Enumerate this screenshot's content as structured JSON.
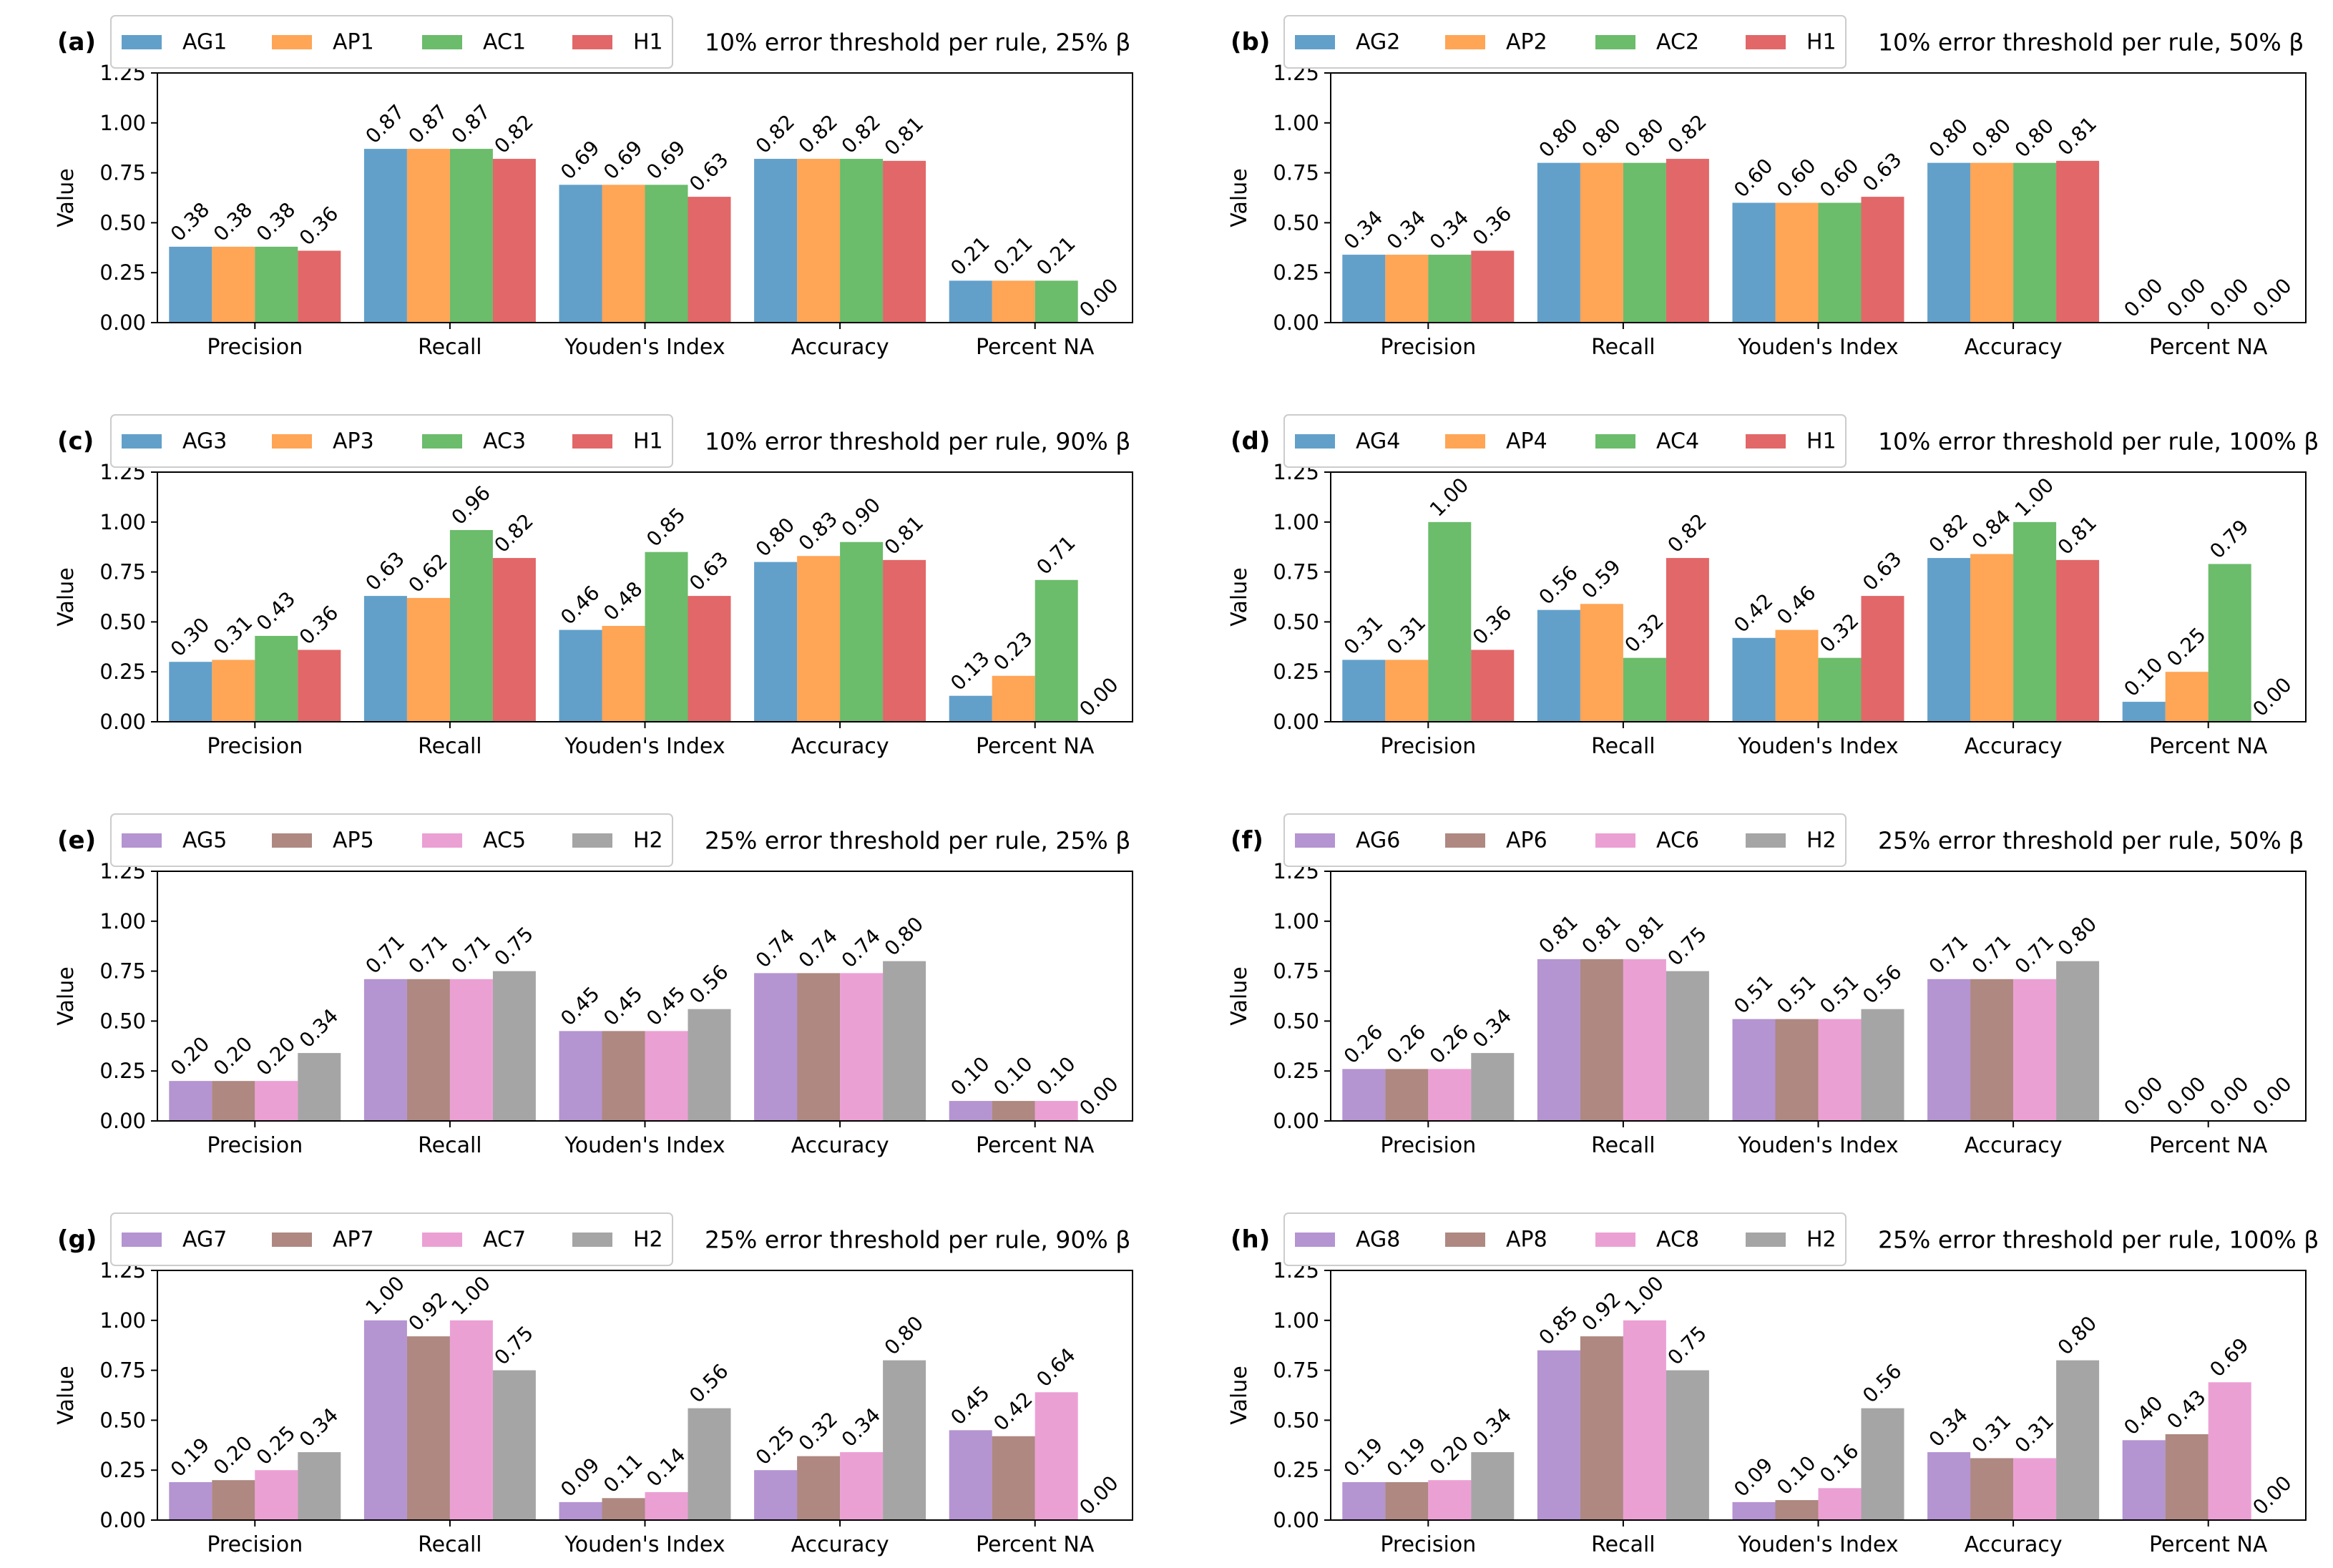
{
  "figure": {
    "ylabel": "Value",
    "yticks": [
      0,
      0.25,
      0.5,
      0.75,
      1.0,
      1.25
    ],
    "ytick_labels": [
      "0.00",
      "0.25",
      "0.50",
      "0.75",
      "1.00",
      "1.25"
    ]
  },
  "chart_data": [
    {
      "type": "bar",
      "panel": "(a)",
      "title": "10% error threshold per rule, 25% β",
      "categories": [
        "Precision",
        "Recall",
        "Youden's Index",
        "Accuracy",
        "Percent NA"
      ],
      "ylabel": "Value",
      "ylim": [
        0,
        1.25
      ],
      "series": [
        {
          "name": "AG1",
          "color": "#1f77b4",
          "values": [
            0.38,
            0.87,
            0.69,
            0.82,
            0.21
          ],
          "labels": [
            "0.38",
            "0.87",
            "0.69",
            "0.82",
            "0.21"
          ]
        },
        {
          "name": "AP1",
          "color": "#ff7f0e",
          "values": [
            0.38,
            0.87,
            0.69,
            0.82,
            0.21
          ],
          "labels": [
            "0.38",
            "0.87",
            "0.69",
            "0.82",
            "0.21"
          ]
        },
        {
          "name": "AC1",
          "color": "#2ca02c",
          "values": [
            0.38,
            0.87,
            0.69,
            0.82,
            0.21
          ],
          "labels": [
            "0.38",
            "0.87",
            "0.69",
            "0.82",
            "0.21"
          ]
        },
        {
          "name": "H1",
          "color": "#d62728",
          "values": [
            0.36,
            0.82,
            0.63,
            0.81,
            0.0
          ],
          "labels": [
            "0.36",
            "0.82",
            "0.63",
            "0.81",
            "0.00"
          ]
        }
      ]
    },
    {
      "type": "bar",
      "panel": "(b)",
      "title": "10% error threshold per rule, 50% β",
      "categories": [
        "Precision",
        "Recall",
        "Youden's Index",
        "Accuracy",
        "Percent NA"
      ],
      "ylabel": "Value",
      "ylim": [
        0,
        1.25
      ],
      "series": [
        {
          "name": "AG2",
          "color": "#1f77b4",
          "values": [
            0.34,
            0.8,
            0.6,
            0.8,
            0.0
          ],
          "labels": [
            "0.34",
            "0.80",
            "0.60",
            "0.80",
            "0.00"
          ]
        },
        {
          "name": "AP2",
          "color": "#ff7f0e",
          "values": [
            0.34,
            0.8,
            0.6,
            0.8,
            0.0
          ],
          "labels": [
            "0.34",
            "0.80",
            "0.60",
            "0.80",
            "0.00"
          ]
        },
        {
          "name": "AC2",
          "color": "#2ca02c",
          "values": [
            0.34,
            0.8,
            0.6,
            0.8,
            0.0
          ],
          "labels": [
            "0.34",
            "0.80",
            "0.60",
            "0.80",
            "0.00"
          ]
        },
        {
          "name": "H1",
          "color": "#d62728",
          "values": [
            0.36,
            0.82,
            0.63,
            0.81,
            0.0
          ],
          "labels": [
            "0.36",
            "0.82",
            "0.63",
            "0.81",
            "0.00"
          ]
        }
      ]
    },
    {
      "type": "bar",
      "panel": "(c)",
      "title": "10% error threshold per rule, 90% β",
      "categories": [
        "Precision",
        "Recall",
        "Youden's Index",
        "Accuracy",
        "Percent NA"
      ],
      "ylabel": "Value",
      "ylim": [
        0,
        1.25
      ],
      "series": [
        {
          "name": "AG3",
          "color": "#1f77b4",
          "values": [
            0.3,
            0.63,
            0.46,
            0.8,
            0.13
          ],
          "labels": [
            "0.30",
            "0.63",
            "0.46",
            "0.80",
            "0.13"
          ]
        },
        {
          "name": "AP3",
          "color": "#ff7f0e",
          "values": [
            0.31,
            0.62,
            0.48,
            0.83,
            0.23
          ],
          "labels": [
            "0.31",
            "0.62",
            "0.48",
            "0.83",
            "0.23"
          ]
        },
        {
          "name": "AC3",
          "color": "#2ca02c",
          "values": [
            0.43,
            0.96,
            0.85,
            0.9,
            0.71
          ],
          "labels": [
            "0.43",
            "0.96",
            "0.85",
            "0.90",
            "0.71"
          ]
        },
        {
          "name": "H1",
          "color": "#d62728",
          "values": [
            0.36,
            0.82,
            0.63,
            0.81,
            0.0
          ],
          "labels": [
            "0.36",
            "0.82",
            "0.63",
            "0.81",
            "0.00"
          ]
        }
      ]
    },
    {
      "type": "bar",
      "panel": "(d)",
      "title": "10% error threshold per rule, 100% β",
      "categories": [
        "Precision",
        "Recall",
        "Youden's Index",
        "Accuracy",
        "Percent NA"
      ],
      "ylabel": "Value",
      "ylim": [
        0,
        1.25
      ],
      "series": [
        {
          "name": "AG4",
          "color": "#1f77b4",
          "values": [
            0.31,
            0.56,
            0.42,
            0.82,
            0.1
          ],
          "labels": [
            "0.31",
            "0.56",
            "0.42",
            "0.82",
            "0.10"
          ]
        },
        {
          "name": "AP4",
          "color": "#ff7f0e",
          "values": [
            0.31,
            0.59,
            0.46,
            0.84,
            0.25
          ],
          "labels": [
            "0.31",
            "0.59",
            "0.46",
            "0.84",
            "0.25"
          ]
        },
        {
          "name": "AC4",
          "color": "#2ca02c",
          "values": [
            1.0,
            0.32,
            0.32,
            1.0,
            0.79
          ],
          "labels": [
            "1.00",
            "0.32",
            "0.32",
            "1.00",
            "0.79"
          ]
        },
        {
          "name": "H1",
          "color": "#d62728",
          "values": [
            0.36,
            0.82,
            0.63,
            0.81,
            0.0
          ],
          "labels": [
            "0.36",
            "0.82",
            "0.63",
            "0.81",
            "0.00"
          ]
        }
      ]
    },
    {
      "type": "bar",
      "panel": "(e)",
      "title": "25% error threshold per rule, 25% β",
      "categories": [
        "Precision",
        "Recall",
        "Youden's Index",
        "Accuracy",
        "Percent NA"
      ],
      "ylabel": "Value",
      "ylim": [
        0,
        1.25
      ],
      "series": [
        {
          "name": "AG5",
          "color": "#9467bd",
          "values": [
            0.2,
            0.71,
            0.45,
            0.74,
            0.1
          ],
          "labels": [
            "0.20",
            "0.71",
            "0.45",
            "0.74",
            "0.10"
          ]
        },
        {
          "name": "AP5",
          "color": "#8c564b",
          "values": [
            0.2,
            0.71,
            0.45,
            0.74,
            0.1
          ],
          "labels": [
            "0.20",
            "0.71",
            "0.45",
            "0.74",
            "0.10"
          ]
        },
        {
          "name": "AC5",
          "color": "#e377c2",
          "values": [
            0.2,
            0.71,
            0.45,
            0.74,
            0.1
          ],
          "labels": [
            "0.20",
            "0.71",
            "0.45",
            "0.74",
            "0.10"
          ]
        },
        {
          "name": "H2",
          "color": "#7f7f7f",
          "values": [
            0.34,
            0.75,
            0.56,
            0.8,
            0.0
          ],
          "labels": [
            "0.34",
            "0.75",
            "0.56",
            "0.80",
            "0.00"
          ]
        }
      ]
    },
    {
      "type": "bar",
      "panel": "(f)",
      "title": "25% error threshold per rule, 50% β",
      "categories": [
        "Precision",
        "Recall",
        "Youden's Index",
        "Accuracy",
        "Percent NA"
      ],
      "ylabel": "Value",
      "ylim": [
        0,
        1.25
      ],
      "series": [
        {
          "name": "AG6",
          "color": "#9467bd",
          "values": [
            0.26,
            0.81,
            0.51,
            0.71,
            0.0
          ],
          "labels": [
            "0.26",
            "0.81",
            "0.51",
            "0.71",
            "0.00"
          ]
        },
        {
          "name": "AP6",
          "color": "#8c564b",
          "values": [
            0.26,
            0.81,
            0.51,
            0.71,
            0.0
          ],
          "labels": [
            "0.26",
            "0.81",
            "0.51",
            "0.71",
            "0.00"
          ]
        },
        {
          "name": "AC6",
          "color": "#e377c2",
          "values": [
            0.26,
            0.81,
            0.51,
            0.71,
            0.0
          ],
          "labels": [
            "0.26",
            "0.81",
            "0.51",
            "0.71",
            "0.00"
          ]
        },
        {
          "name": "H2",
          "color": "#7f7f7f",
          "values": [
            0.34,
            0.75,
            0.56,
            0.8,
            0.0
          ],
          "labels": [
            "0.34",
            "0.75",
            "0.56",
            "0.80",
            "0.00"
          ]
        }
      ]
    },
    {
      "type": "bar",
      "panel": "(g)",
      "title": "25% error threshold per rule, 90% β",
      "categories": [
        "Precision",
        "Recall",
        "Youden's Index",
        "Accuracy",
        "Percent NA"
      ],
      "ylabel": "Value",
      "ylim": [
        0,
        1.25
      ],
      "series": [
        {
          "name": "AG7",
          "color": "#9467bd",
          "values": [
            0.19,
            1.0,
            0.09,
            0.25,
            0.45
          ],
          "labels": [
            "0.19",
            "1.00",
            "0.09",
            "0.25",
            "0.45"
          ]
        },
        {
          "name": "AP7",
          "color": "#8c564b",
          "values": [
            0.2,
            0.92,
            0.11,
            0.32,
            0.42
          ],
          "labels": [
            "0.20",
            "0.92",
            "0.11",
            "0.32",
            "0.42"
          ]
        },
        {
          "name": "AC7",
          "color": "#e377c2",
          "values": [
            0.25,
            1.0,
            0.14,
            0.34,
            0.64
          ],
          "labels": [
            "0.25",
            "1.00",
            "0.14",
            "0.34",
            "0.64"
          ]
        },
        {
          "name": "H2",
          "color": "#7f7f7f",
          "values": [
            0.34,
            0.75,
            0.56,
            0.8,
            0.0
          ],
          "labels": [
            "0.34",
            "0.75",
            "0.56",
            "0.80",
            "0.00"
          ]
        }
      ]
    },
    {
      "type": "bar",
      "panel": "(h)",
      "title": "25% error threshold per rule, 100% β",
      "categories": [
        "Precision",
        "Recall",
        "Youden's Index",
        "Accuracy",
        "Percent NA"
      ],
      "ylabel": "Value",
      "ylim": [
        0,
        1.25
      ],
      "series": [
        {
          "name": "AG8",
          "color": "#9467bd",
          "values": [
            0.19,
            0.85,
            0.09,
            0.34,
            0.4
          ],
          "labels": [
            "0.19",
            "0.85",
            "0.09",
            "0.34",
            "0.40"
          ]
        },
        {
          "name": "AP8",
          "color": "#8c564b",
          "values": [
            0.19,
            0.92,
            0.1,
            0.31,
            0.43
          ],
          "labels": [
            "0.19",
            "0.92",
            "0.10",
            "0.31",
            "0.43"
          ]
        },
        {
          "name": "AC8",
          "color": "#e377c2",
          "values": [
            0.2,
            1.0,
            0.16,
            0.31,
            0.69
          ],
          "labels": [
            "0.20",
            "1.00",
            "0.16",
            "0.31",
            "0.69"
          ]
        },
        {
          "name": "H2",
          "color": "#7f7f7f",
          "values": [
            0.34,
            0.75,
            0.56,
            0.8,
            0.0
          ],
          "labels": [
            "0.34",
            "0.75",
            "0.56",
            "0.80",
            "0.00"
          ]
        }
      ]
    }
  ]
}
